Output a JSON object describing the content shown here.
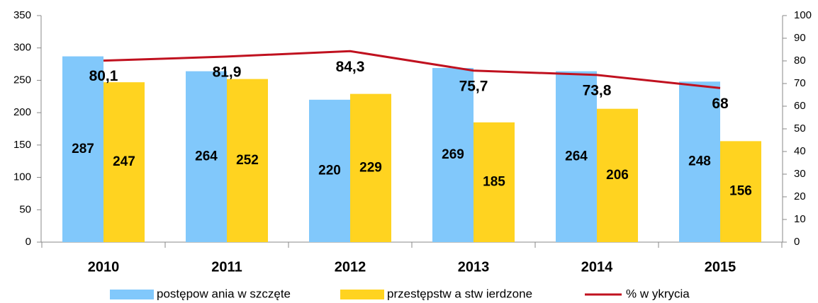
{
  "chart_data": {
    "type": "bar_line",
    "categories": [
      "2010",
      "2011",
      "2012",
      "2013",
      "2014",
      "2015"
    ],
    "series": [
      {
        "name": "postępow ania w szczęte",
        "color": "#81c8fb",
        "values": [
          287,
          264,
          220,
          269,
          264,
          248
        ]
      },
      {
        "name": "przestępstw a stw ierdzone",
        "color": "#ffd320",
        "values": [
          247,
          252,
          229,
          185,
          206,
          156
        ]
      },
      {
        "name": "% w ykrycia",
        "color": "#c0111f",
        "axis": "y2",
        "type": "line",
        "values": [
          80.1,
          81.9,
          84.3,
          75.7,
          73.8,
          68
        ],
        "value_labels": [
          "80,1",
          "81,9",
          "84,3",
          "75,7",
          "73,8",
          "68"
        ]
      }
    ],
    "ylim": [
      0,
      350
    ],
    "yticks": [
      0,
      50,
      100,
      150,
      200,
      250,
      300,
      350
    ],
    "y2lim": [
      0,
      100
    ],
    "y2ticks": [
      0,
      10,
      20,
      30,
      40,
      50,
      60,
      70,
      80,
      90,
      100
    ],
    "legend": "bottom"
  }
}
